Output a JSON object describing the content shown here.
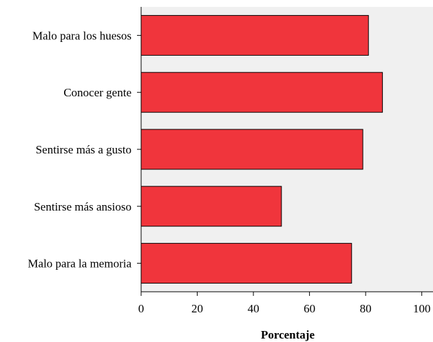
{
  "chart_data": {
    "type": "bar",
    "orientation": "horizontal",
    "categories": [
      "Malo para los huesos",
      "Conocer gente",
      "Sentirse más a gusto",
      "Sentirse más ansioso",
      "Malo para la memoria"
    ],
    "values": [
      81,
      86,
      79,
      50,
      75
    ],
    "xlabel": "Porcentaje",
    "ylabel": "",
    "xlim": [
      0,
      104
    ],
    "xticks": [
      "0",
      "20",
      "40",
      "60",
      "80",
      "100"
    ],
    "grid": false,
    "colors": {
      "bar": "#f0353c",
      "bar_stroke": "#000000",
      "plot_bg": "#f0f0f0"
    }
  }
}
